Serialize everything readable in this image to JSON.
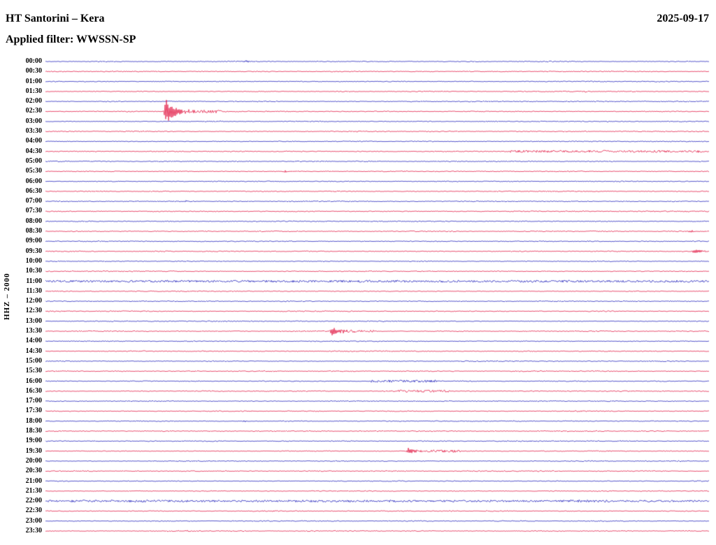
{
  "header": {
    "title": "HT Santorini – Kera",
    "date": "2025-09-17",
    "filter_label": "Applied filter: WWSSN-SP"
  },
  "sidebar": {
    "channel_label": "HHZ – 2000"
  },
  "chart_data": {
    "type": "helicorder",
    "title": "HT Santorini – Kera",
    "date": "2025-09-17",
    "filter": "WWSSN-SP",
    "channel": "HHZ – 2000",
    "row_duration_minutes": 30,
    "rows": [
      "00:00",
      "00:30",
      "01:00",
      "01:30",
      "02:00",
      "02:30",
      "03:00",
      "03:30",
      "04:00",
      "04:30",
      "05:00",
      "05:30",
      "06:00",
      "06:30",
      "07:00",
      "07:30",
      "08:00",
      "08:30",
      "09:00",
      "09:30",
      "10:00",
      "10:30",
      "11:00",
      "11:30",
      "12:00",
      "12:30",
      "13:00",
      "13:30",
      "14:00",
      "14:30",
      "15:00",
      "15:30",
      "16:00",
      "16:30",
      "17:00",
      "17:30",
      "18:00",
      "18:30",
      "19:00",
      "19:30",
      "20:00",
      "20:30",
      "21:00",
      "21:30",
      "22:00",
      "22:30",
      "23:00",
      "23:30"
    ],
    "color_cycle": [
      "blue",
      "red"
    ],
    "colors": {
      "blue": "#1a1ab8",
      "red": "#e0103c"
    },
    "base_noise": 0.55,
    "events": [
      {
        "row_label": "02:30",
        "row": 5,
        "type": "quake",
        "x_frac": 0.182,
        "approx_time": "02:35",
        "amp": 17,
        "decay": 14
      },
      {
        "row_label": "13:30",
        "row": 27,
        "type": "quake",
        "x_frac": 0.432,
        "approx_time": "13:43",
        "amp": 6.5,
        "decay": 11
      },
      {
        "row_label": "19:30",
        "row": 39,
        "type": "quake",
        "x_frac": 0.547,
        "approx_time": "19:46",
        "amp": 5,
        "decay": 10
      },
      {
        "row_label": "09:30",
        "row": 19,
        "type": "quake",
        "x_frac": 0.978,
        "approx_time": "09:59",
        "amp": 5,
        "decay": 9
      },
      {
        "row_label": "08:30",
        "row": 17,
        "type": "burst",
        "x_frac": 0.972,
        "approx_time": "08:59",
        "amp": 2.2,
        "decay": 5
      },
      {
        "row_label": "05:30",
        "row": 11,
        "type": "burst",
        "x_frac": 0.362,
        "approx_time": "05:41",
        "amp": 1.9,
        "decay": 6
      },
      {
        "row_label": "00:00",
        "row": 0,
        "type": "burst",
        "x_frac": 0.302,
        "approx_time": "00:09",
        "amp": 1.5,
        "decay": 8
      },
      {
        "row_label": "07:00",
        "row": 14,
        "type": "burst",
        "x_frac": 0.213,
        "approx_time": "07:06",
        "amp": 1.5,
        "decay": 4
      },
      {
        "row_label": "11:00",
        "row": 22,
        "type": "burst",
        "x_frac": 0.233,
        "approx_time": "11:07",
        "amp": 1.7,
        "decay": 5
      },
      {
        "row_label": "18:00",
        "row": 36,
        "type": "burst",
        "x_frac": 0.298,
        "approx_time": "18:09",
        "amp": 1.5,
        "decay": 7
      },
      {
        "row_label": "17:00",
        "row": 34,
        "type": "burst",
        "x_frac": 0.68,
        "approx_time": "17:20",
        "amp": 1.4,
        "decay": 5
      },
      {
        "row_label": "02:30",
        "row": 5,
        "type": "coda",
        "x0": 0.205,
        "x1": 0.265,
        "amp": 1.6
      },
      {
        "row_label": "13:30",
        "row": 27,
        "type": "coda",
        "x0": 0.445,
        "x1": 0.495,
        "amp": 1.2
      },
      {
        "row_label": "19:30",
        "row": 39,
        "type": "coda",
        "x0": 0.558,
        "x1": 0.625,
        "amp": 1.1
      },
      {
        "row_label": "16:00",
        "row": 32,
        "type": "coda",
        "x0": 0.49,
        "x1": 0.59,
        "amp": 1.2
      },
      {
        "row_label": "16:30",
        "row": 33,
        "type": "coda",
        "x0": 0.53,
        "x1": 0.61,
        "amp": 1.2
      },
      {
        "row_label": "04:30",
        "row": 9,
        "type": "coda",
        "x0": 0.7,
        "x1": 0.99,
        "amp": 0.95
      },
      {
        "row_label": "11:00",
        "row": 22,
        "type": "coda",
        "x0": 0.0,
        "x1": 1.0,
        "amp": 0.9
      },
      {
        "row_label": "22:00",
        "row": 44,
        "type": "coda",
        "x0": 0.0,
        "x1": 1.0,
        "amp": 0.9
      }
    ]
  }
}
